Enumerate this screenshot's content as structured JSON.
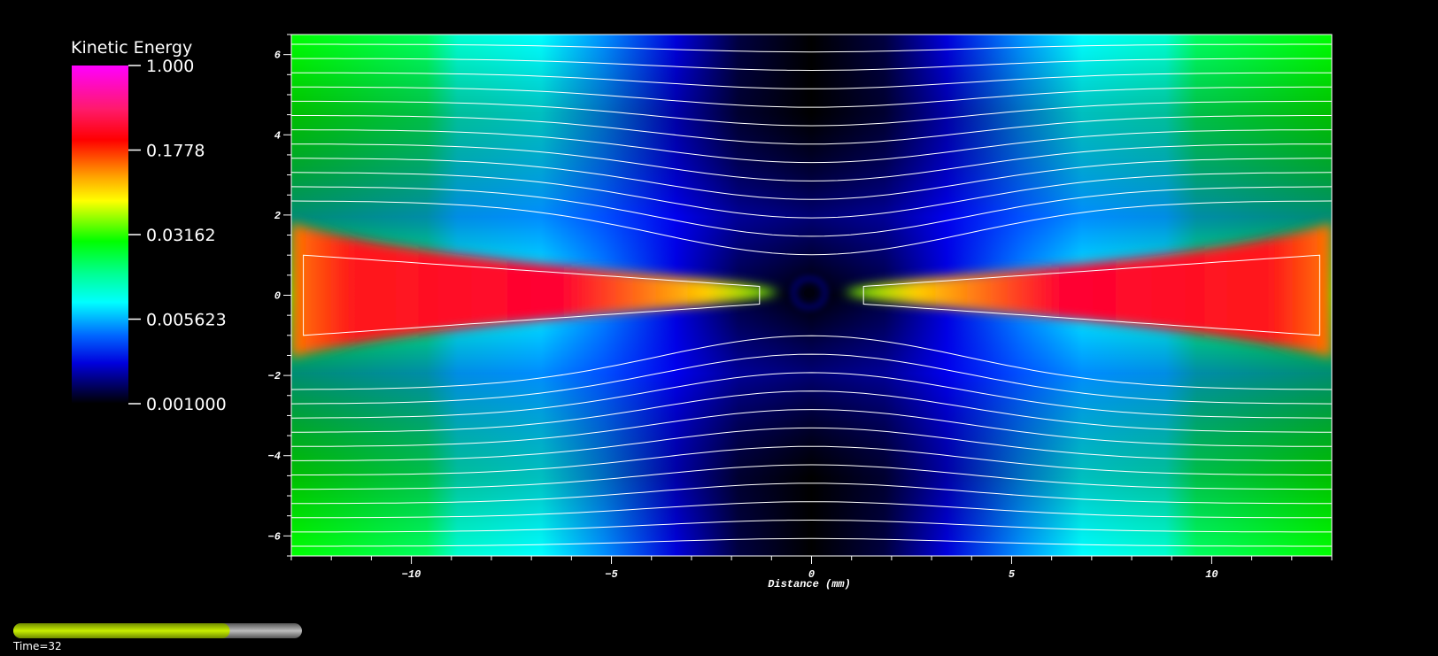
{
  "legend": {
    "title": "Kinetic Energy",
    "scale": "log",
    "range": [
      0.001,
      1.0
    ],
    "ticks": [
      {
        "value": 1.0,
        "label": "1.000"
      },
      {
        "value": 0.1778,
        "label": "0.1778"
      },
      {
        "value": 0.03162,
        "label": "0.03162"
      },
      {
        "value": 0.005623,
        "label": "0.005623"
      },
      {
        "value": 0.001,
        "label": "0.001000"
      }
    ],
    "colormap": [
      "#ff00ff",
      "#ff0000",
      "#ffff00",
      "#00ff00",
      "#00ffff",
      "#0000ff",
      "#000000"
    ]
  },
  "chart_data": {
    "type": "heatmap",
    "title": "",
    "xlabel": "Distance (mm)",
    "ylabel": "",
    "xlim": [
      -13,
      13
    ],
    "ylim": [
      -6.5,
      6.5
    ],
    "x_ticks": [
      -10,
      -5,
      0,
      5,
      10
    ],
    "y_ticks": [
      -6,
      -4,
      -2,
      0,
      2,
      4,
      6
    ],
    "variable": "Kinetic Energy",
    "color_scale": "log",
    "color_range": [
      0.001,
      1.0
    ],
    "features": {
      "center_minimum_x": 0,
      "high_energy_band_y": 0,
      "streamlines": "white contour lines"
    }
  },
  "time_slider": {
    "label": "Time=32",
    "progress": 0.75
  }
}
